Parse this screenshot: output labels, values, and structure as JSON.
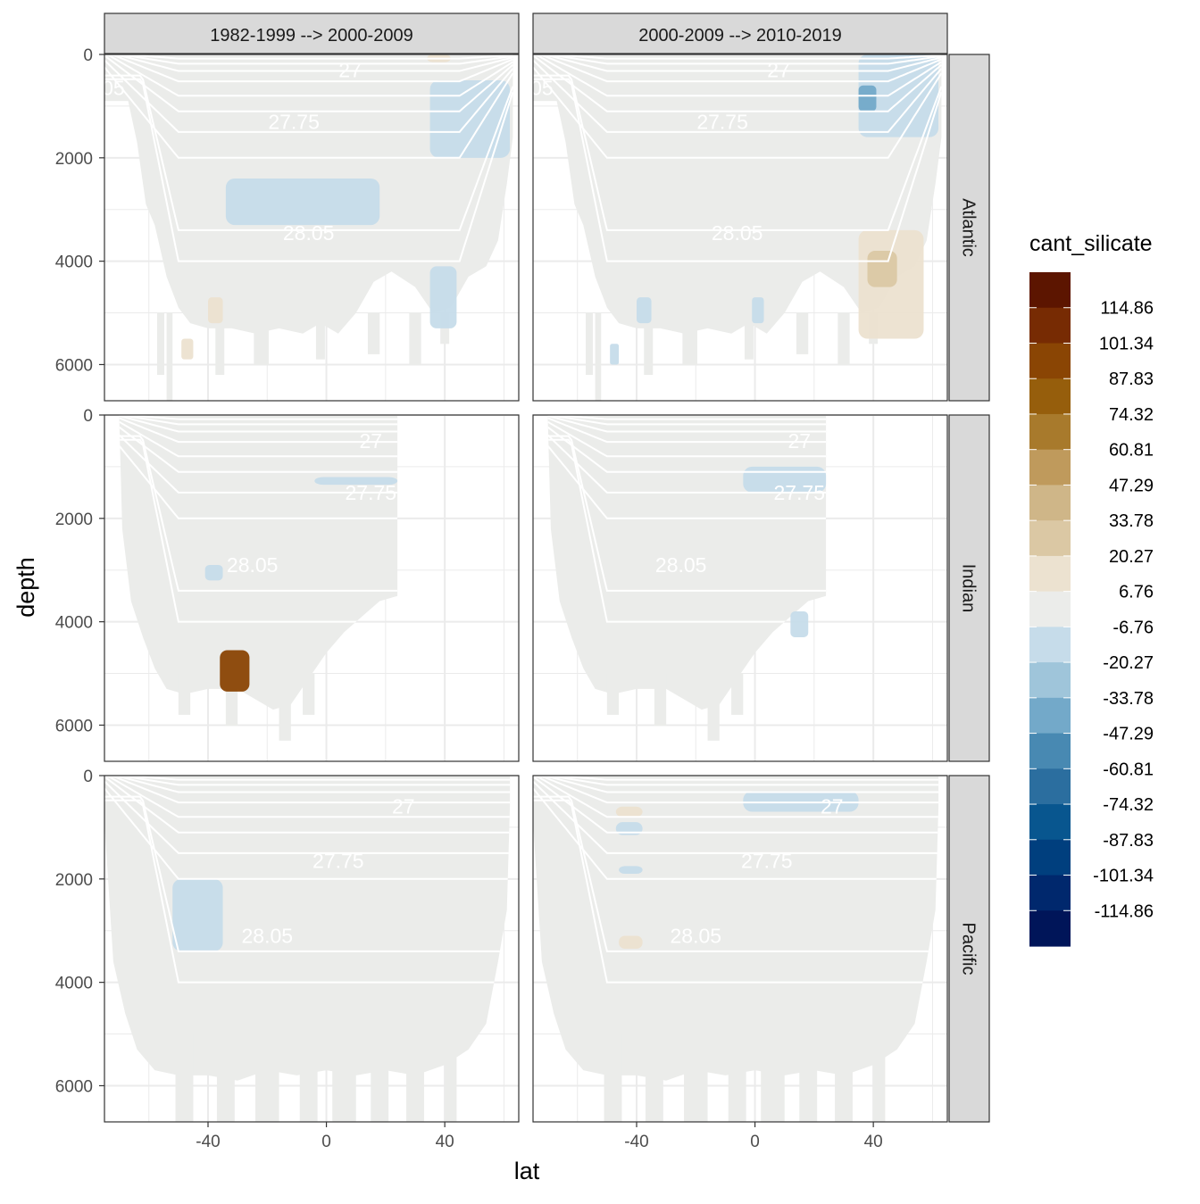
{
  "chart_data": {
    "type": "heatmap",
    "title": "",
    "xlabel": "lat",
    "ylabel": "depth",
    "xlim": [
      -75,
      65
    ],
    "ylim": [
      6700,
      0
    ],
    "x_ticks": [
      -40,
      0,
      40
    ],
    "x_tick_labels": [
      "-40",
      "0",
      "40"
    ],
    "y_ticks": [
      0,
      2000,
      4000,
      6000
    ],
    "y_tick_labels": [
      "0",
      "2000",
      "4000",
      "6000"
    ],
    "y_reversed": true,
    "grid": true,
    "columns": [
      "1982-1999 --> 2000-2009",
      "2000-2009 --> 2010-2019"
    ],
    "rows": [
      "Atlantic",
      "Indian",
      "Pacific"
    ],
    "legend": {
      "title": "cant_silicate",
      "placement": "right",
      "labels": [
        "114.86",
        "101.34",
        "87.83",
        "74.32",
        "60.81",
        "47.29",
        "33.78",
        "20.27",
        "6.76",
        "-6.76",
        "-20.27",
        "-33.78",
        "-47.29",
        "-60.81",
        "-74.32",
        "-87.83",
        "-101.34",
        "-114.86"
      ],
      "colors": [
        "#5c1500",
        "#772b03",
        "#8a4504",
        "#965e0c",
        "#a87a2c",
        "#bf9a5c",
        "#cfb688",
        "#dbc8a4",
        "#ece2d0",
        "#ebecea",
        "#c6dcea",
        "#9fc5da",
        "#73a9c9",
        "#4889b2",
        "#2b6e9f",
        "#08568f",
        "#003f7e",
        "#00286d",
        "#001559"
      ]
    },
    "isopycnals": [
      "27",
      "27.75",
      "28.05"
    ],
    "basins": [
      {
        "name": "Atlantic",
        "x_range": [
          -75,
          63
        ],
        "contour_labels": [
          {
            "text": "27",
            "lat": 8,
            "depth": 300
          },
          {
            "text": "27.75",
            "lat": -11,
            "depth": 1300
          },
          {
            "text": "28.05",
            "lat": -6,
            "depth": 3450
          },
          {
            "text": "05",
            "lat": -72,
            "depth": 650
          }
        ]
      },
      {
        "name": "Indian",
        "x_range": [
          -70,
          24
        ],
        "contour_labels": [
          {
            "text": "27",
            "lat": 15,
            "depth": 500
          },
          {
            "text": "27.75",
            "lat": 15,
            "depth": 1500
          },
          {
            "text": "28.05",
            "lat": -25,
            "depth": 2900
          }
        ]
      },
      {
        "name": "Pacific",
        "x_range": [
          -75,
          62
        ],
        "contour_labels": [
          {
            "text": "27",
            "lat": 26,
            "depth": 600
          },
          {
            "text": "27.75",
            "lat": 4,
            "depth": 1650
          },
          {
            "text": "28.05",
            "lat": -20,
            "depth": 3100
          }
        ]
      }
    ],
    "anomalies": [
      {
        "basin": "Atlantic",
        "period": 0,
        "value": -20,
        "lat": [
          -34,
          18
        ],
        "depth": [
          2400,
          3300
        ]
      },
      {
        "basin": "Atlantic",
        "period": 0,
        "value": -20,
        "lat": [
          35,
          62
        ],
        "depth": [
          500,
          2000
        ]
      },
      {
        "basin": "Atlantic",
        "period": 0,
        "value": -20,
        "lat": [
          35,
          44
        ],
        "depth": [
          4100,
          5300
        ]
      },
      {
        "basin": "Atlantic",
        "period": 0,
        "value": 20,
        "lat": [
          -40,
          -35
        ],
        "depth": [
          4700,
          5200
        ]
      },
      {
        "basin": "Atlantic",
        "period": 0,
        "value": 20,
        "lat": [
          -49,
          -45
        ],
        "depth": [
          5500,
          5900
        ]
      },
      {
        "basin": "Atlantic",
        "period": 0,
        "value": 20,
        "lat": [
          34,
          42
        ],
        "depth": [
          0,
          150
        ]
      },
      {
        "basin": "Atlantic",
        "period": 1,
        "value": -20,
        "lat": [
          35,
          62
        ],
        "depth": [
          0,
          1600
        ]
      },
      {
        "basin": "Atlantic",
        "period": 1,
        "value": -47,
        "lat": [
          35,
          41
        ],
        "depth": [
          600,
          1100
        ]
      },
      {
        "basin": "Atlantic",
        "period": 1,
        "value": 20,
        "lat": [
          35,
          57
        ],
        "depth": [
          3400,
          5500
        ]
      },
      {
        "basin": "Atlantic",
        "period": 1,
        "value": 33,
        "lat": [
          38,
          48
        ],
        "depth": [
          3800,
          4500
        ]
      },
      {
        "basin": "Atlantic",
        "period": 1,
        "value": -20,
        "lat": [
          -40,
          -35
        ],
        "depth": [
          4700,
          5200
        ]
      },
      {
        "basin": "Atlantic",
        "period": 1,
        "value": -20,
        "lat": [
          -1,
          3
        ],
        "depth": [
          4700,
          5200
        ]
      },
      {
        "basin": "Atlantic",
        "period": 1,
        "value": -20,
        "lat": [
          -49,
          -46
        ],
        "depth": [
          5600,
          6000
        ]
      },
      {
        "basin": "Indian",
        "period": 0,
        "value": 101,
        "lat": [
          -36,
          -26
        ],
        "depth": [
          4550,
          5350
        ]
      },
      {
        "basin": "Indian",
        "period": 0,
        "value": -20,
        "lat": [
          -41,
          -35
        ],
        "depth": [
          2900,
          3200
        ]
      },
      {
        "basin": "Indian",
        "period": 0,
        "value": -20,
        "lat": [
          -4,
          24
        ],
        "depth": [
          1200,
          1350
        ]
      },
      {
        "basin": "Indian",
        "period": 1,
        "value": -20,
        "lat": [
          -4,
          24
        ],
        "depth": [
          1000,
          1500
        ]
      },
      {
        "basin": "Indian",
        "period": 1,
        "value": -20,
        "lat": [
          12,
          18
        ],
        "depth": [
          3800,
          4300
        ]
      },
      {
        "basin": "Pacific",
        "period": 0,
        "value": -20,
        "lat": [
          -52,
          -35
        ],
        "depth": [
          2000,
          3400
        ]
      },
      {
        "basin": "Pacific",
        "period": 1,
        "value": -20,
        "lat": [
          -4,
          35
        ],
        "depth": [
          300,
          700
        ]
      },
      {
        "basin": "Pacific",
        "period": 1,
        "value": -20,
        "lat": [
          -47,
          -38
        ],
        "depth": [
          900,
          1150
        ]
      },
      {
        "basin": "Pacific",
        "period": 1,
        "value": -20,
        "lat": [
          -46,
          -38
        ],
        "depth": [
          1750,
          1900
        ]
      },
      {
        "basin": "Pacific",
        "period": 1,
        "value": 20,
        "lat": [
          -47,
          -38
        ],
        "depth": [
          600,
          800
        ]
      },
      {
        "basin": "Pacific",
        "period": 1,
        "value": 20,
        "lat": [
          -46,
          -38
        ],
        "depth": [
          3100,
          3350
        ]
      }
    ]
  }
}
